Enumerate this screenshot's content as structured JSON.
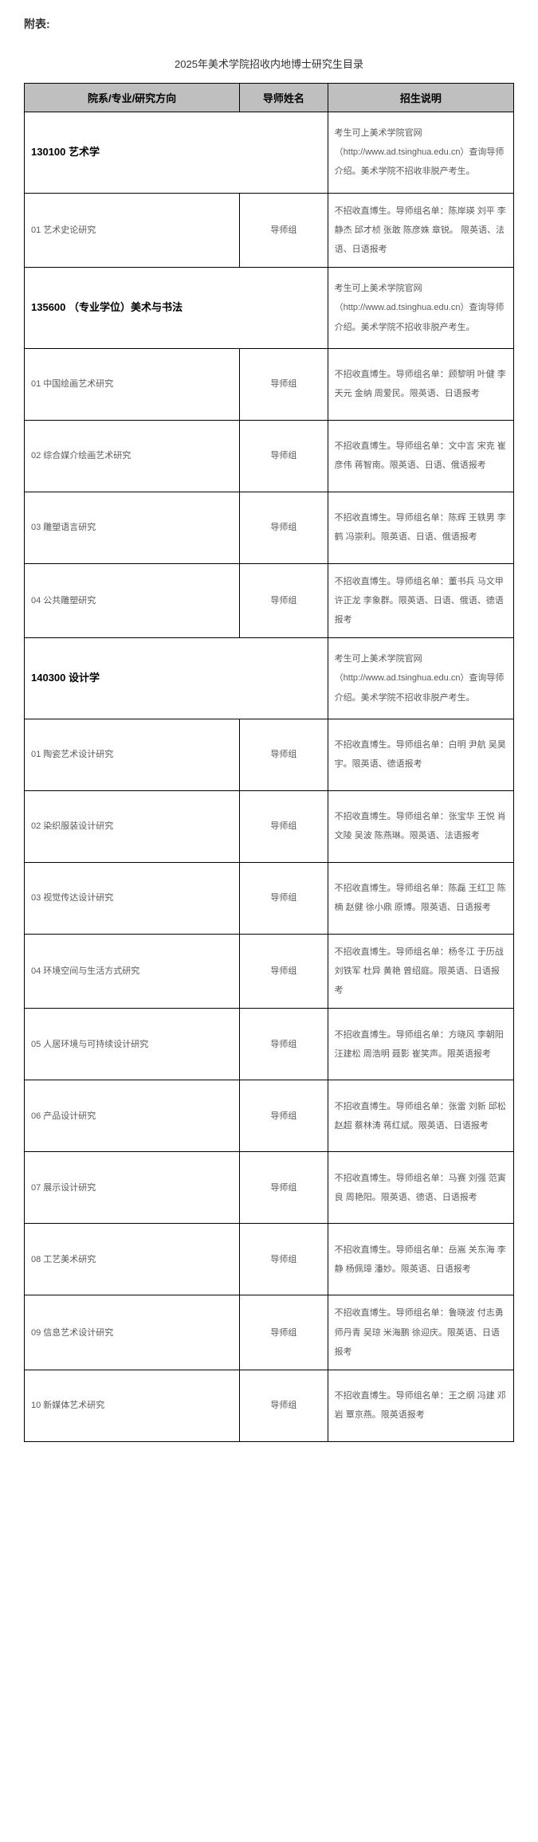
{
  "attachLabel": "附表:",
  "tableTitle": "2025年美术学院招收内地博士研究生目录",
  "headers": {
    "direction": "院系/专业/研究方向",
    "advisor": "导师姓名",
    "desc": "招生说明"
  },
  "majorDescCommon": "考生可上美术学院官网（http://www.ad.tsinghua.edu.cn）查询导师介绍。美术学院不招收非脱产考生。",
  "advisorGroup": "导师组",
  "majors": [
    {
      "code": "130100 艺术学",
      "directions": [
        {
          "name": "01 艺术史论研究",
          "desc": "不招收直博生。导师组名单：陈岸瑛 刘平 李静杰 邱才桢 张敢 陈彦姝 章锐。 限英语、法语、日语报考"
        }
      ]
    },
    {
      "code": "135600 （专业学位）美术与书法",
      "directions": [
        {
          "name": "01 中国绘画艺术研究",
          "desc": "不招收直博生。导师组名单：顾黎明 叶健 李天元 金纳 周爱民。限英语、日语报考"
        },
        {
          "name": "02 综合媒介绘画艺术研究",
          "desc": "不招收直博生。导师组名单：文中言 宋克 崔彦伟 蒋智南。限英语、日语、俄语报考"
        },
        {
          "name": "03 雕塑语言研究",
          "desc": "不招收直博生。导师组名单：陈辉 王轶男 李鹤 冯崇利。限英语、日语、俄语报考"
        },
        {
          "name": "04 公共雕塑研究",
          "desc": "不招收直博生。导师组名单：董书兵 马文甲 许正龙 李象群。限英语、日语、俄语、德语报考"
        }
      ]
    },
    {
      "code": "140300 设计学",
      "directions": [
        {
          "name": "01 陶瓷艺术设计研究",
          "desc": "不招收直博生。导师组名单：白明 尹航 吴昊宇。限英语、德语报考"
        },
        {
          "name": "02 染织服装设计研究",
          "desc": "不招收直博生。导师组名单：张宝华 王悦 肖文陵 吴波 陈燕琳。限英语、法语报考"
        },
        {
          "name": "03 视觉传达设计研究",
          "desc": "不招收直博生。导师组名单：陈磊 王红卫 陈楠 赵健 徐小鼎 原博。限英语、日语报考"
        },
        {
          "name": "04 环境空间与生活方式研究",
          "desc": "不招收直博生。导师组名单：杨冬江 于历战 刘铁军 杜异 黄艳 曾绍庭。限英语、日语报考"
        },
        {
          "name": "05 人居环境与可持续设计研究",
          "desc": "不招收直博生。导师组名单：方晓风 李朝阳 汪建松 周浩明 聂影 崔笑声。限英语报考"
        },
        {
          "name": "06 产品设计研究",
          "desc": "不招收直博生。导师组名单：张雷 刘新 邱松 赵超 蔡林涛 蒋红斌。限英语、日语报考"
        },
        {
          "name": "07 展示设计研究",
          "desc": "不招收直博生。导师组名单：马赛 刘强 范寅良 周艳阳。限英语、德语、日语报考"
        },
        {
          "name": "08 工艺美术研究",
          "desc": "不招收直博生。导师组名单：岳嵩 关东海 李静 杨佩璋 潘妙。限英语、日语报考"
        },
        {
          "name": "09 信息艺术设计研究",
          "desc": "不招收直博生。导师组名单：鲁晓波 付志勇 师丹青 吴琼 米海鹏 徐迎庆。限英语、日语报考"
        },
        {
          "name": "10 新媒体艺术研究",
          "desc": "不招收直博生。导师组名单：王之纲 冯建 邓岩 覃京燕。限英语报考"
        }
      ]
    }
  ]
}
